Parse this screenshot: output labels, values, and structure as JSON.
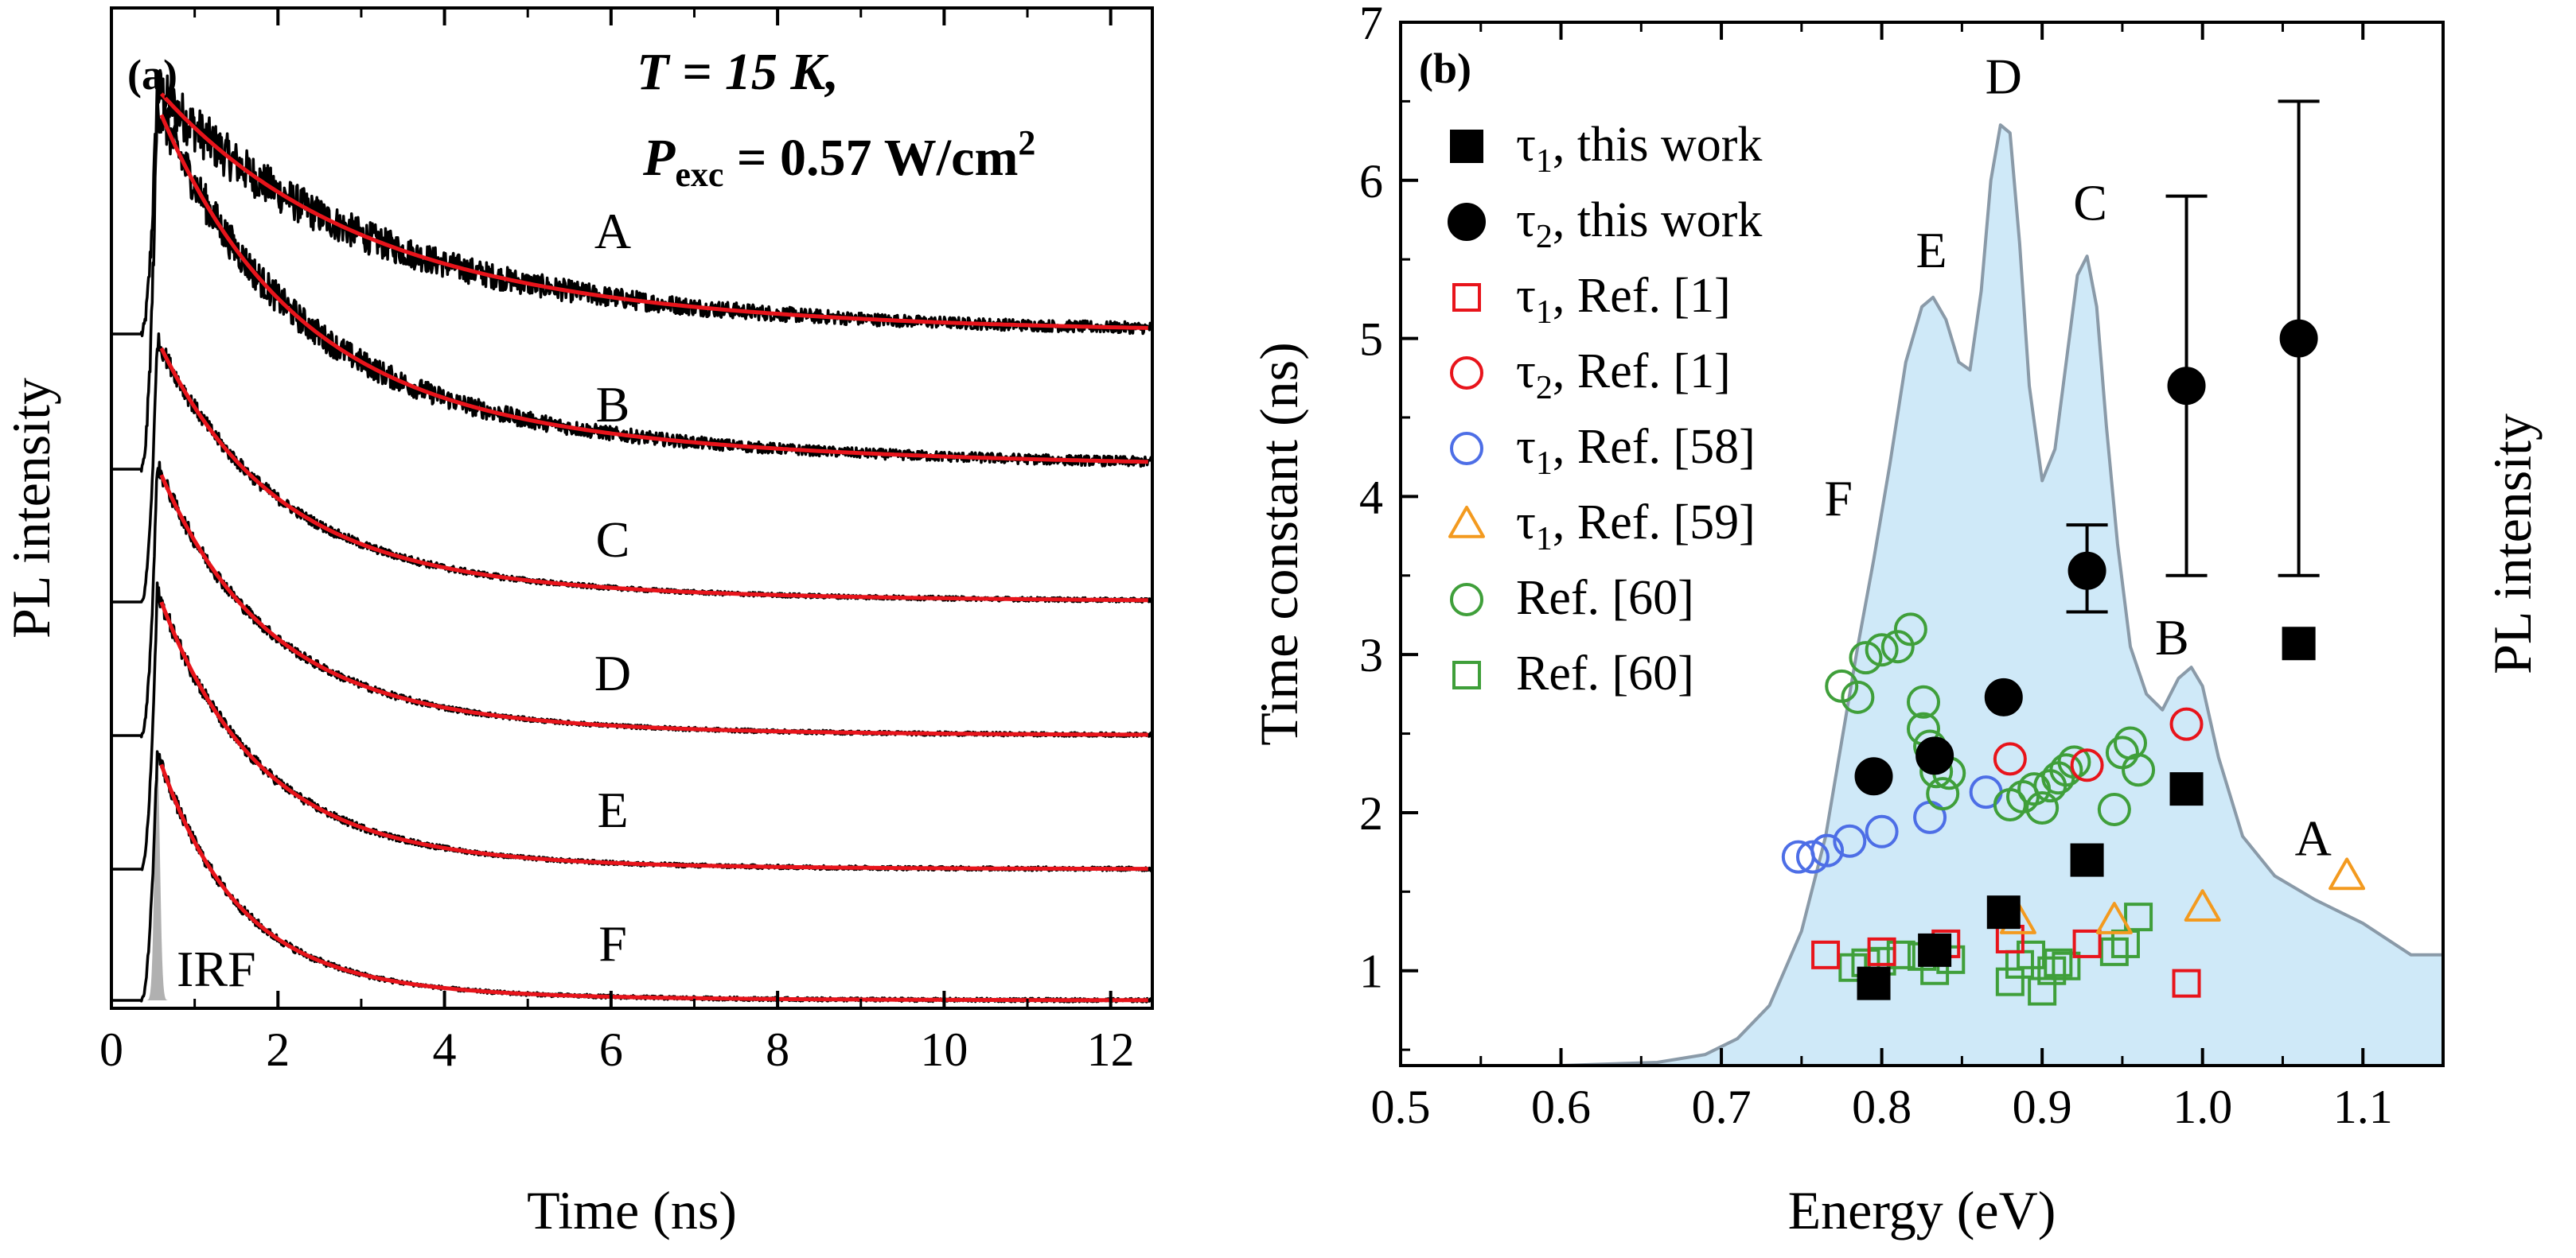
{
  "chart_data": [
    {
      "panel": "a",
      "type": "line",
      "panel_label": "(a)",
      "condition_T": "T = 15 K,",
      "condition_P_symbol": "P",
      "condition_P_sub": "exc",
      "condition_P_value": " = 0.57 W/cm",
      "condition_P_sup": "2",
      "xlabel": "Time (ns)",
      "ylabel": "PL intensity",
      "xlim": [
        0,
        12.5
      ],
      "xticks": [
        0,
        2,
        4,
        6,
        8,
        10,
        12
      ],
      "xtick_labels": [
        "0",
        "2",
        "4",
        "6",
        "8",
        "10",
        "12"
      ],
      "irf_label": "IRF",
      "series": [
        {
          "name": "A",
          "offset": 5.0,
          "amp1": 0.62,
          "tau1": 2.1,
          "amp2": 0.38,
          "tau2": 4.2,
          "noise": 0.06
        },
        {
          "name": "B",
          "offset": 4.0,
          "amp1": 0.75,
          "tau1": 1.5,
          "amp2": 0.25,
          "tau2": 4.7,
          "noise": 0.035
        },
        {
          "name": "C",
          "offset": 3.0,
          "amp1": 0.8,
          "tau1": 1.3,
          "amp2": 0.2,
          "tau2": 3.5,
          "noise": 0.02
        },
        {
          "name": "D",
          "offset": 2.0,
          "amp1": 0.8,
          "tau1": 1.2,
          "amp2": 0.2,
          "tau2": 2.8,
          "noise": 0.018
        },
        {
          "name": "E",
          "offset": 1.0,
          "amp1": 0.82,
          "tau1": 1.1,
          "amp2": 0.18,
          "tau2": 2.3,
          "noise": 0.018
        },
        {
          "name": "F",
          "offset": 0.0,
          "amp1": 0.85,
          "tau1": 0.9,
          "amp2": 0.15,
          "tau2": 2.2,
          "noise": 0.018
        }
      ],
      "line_colors": {
        "data": "#000000",
        "fit": "#e8141b",
        "irf": "#b0b0b0"
      }
    },
    {
      "panel": "b",
      "type": "scatter",
      "panel_label": "(b)",
      "xlabel": "Energy (eV)",
      "ylabel": "Time constant (ns)",
      "ylabel_right": "PL intensity",
      "xlim": [
        0.5,
        1.15
      ],
      "ylim": [
        0.4,
        7.0
      ],
      "xticks": [
        0.5,
        0.6,
        0.7,
        0.8,
        0.9,
        1.0,
        1.1
      ],
      "xtick_labels": [
        "0.5",
        "0.6",
        "0.7",
        "0.8",
        "0.9",
        "1.0",
        "1.1"
      ],
      "yticks": [
        1,
        2,
        3,
        4,
        5,
        6,
        7
      ],
      "ytick_labels": [
        "1",
        "2",
        "3",
        "4",
        "5",
        "6",
        "7"
      ],
      "pl_spectrum": {
        "fill": "#cfe9f8",
        "stroke": "#8a9aa8",
        "energy": [
          0.6,
          0.66,
          0.69,
          0.71,
          0.73,
          0.75,
          0.765,
          0.775,
          0.785,
          0.795,
          0.805,
          0.815,
          0.825,
          0.832,
          0.84,
          0.848,
          0.855,
          0.862,
          0.868,
          0.874,
          0.88,
          0.886,
          0.892,
          0.9,
          0.908,
          0.915,
          0.922,
          0.928,
          0.934,
          0.94,
          0.947,
          0.955,
          0.965,
          0.975,
          0.985,
          0.993,
          1.0,
          1.01,
          1.025,
          1.045,
          1.07,
          1.1,
          1.13,
          1.15
        ],
        "level": [
          0.4,
          0.42,
          0.47,
          0.57,
          0.78,
          1.25,
          1.85,
          2.45,
          3.05,
          3.6,
          4.2,
          4.85,
          5.2,
          5.26,
          5.12,
          4.85,
          4.8,
          5.3,
          6.0,
          6.35,
          6.3,
          5.6,
          4.7,
          4.1,
          4.3,
          4.85,
          5.4,
          5.52,
          5.2,
          4.45,
          3.7,
          3.05,
          2.75,
          2.65,
          2.85,
          2.92,
          2.8,
          2.35,
          1.85,
          1.6,
          1.45,
          1.3,
          1.1,
          1.1
        ]
      },
      "peak_labels": [
        {
          "text": "D",
          "x": 0.876,
          "y": 6.55
        },
        {
          "text": "C",
          "x": 0.93,
          "y": 5.75
        },
        {
          "text": "E",
          "x": 0.831,
          "y": 5.45
        },
        {
          "text": "F",
          "x": 0.773,
          "y": 3.88
        },
        {
          "text": "B",
          "x": 0.981,
          "y": 3.0
        },
        {
          "text": "A",
          "x": 1.069,
          "y": 1.73
        }
      ],
      "legend": [
        {
          "symbol": "square-filled",
          "color": "#000000",
          "label_symbol": "τ",
          "label_sub": "1",
          "label_rest": ", this work"
        },
        {
          "symbol": "circle-filled",
          "color": "#000000",
          "label_symbol": "τ",
          "label_sub": "2",
          "label_rest": ", this work"
        },
        {
          "symbol": "square-open",
          "color": "#e8141b",
          "label_symbol": "τ",
          "label_sub": "1",
          "label_rest": ", Ref. [1]"
        },
        {
          "symbol": "circle-open",
          "color": "#e8141b",
          "label_symbol": "τ",
          "label_sub": "2",
          "label_rest": ", Ref. [1]"
        },
        {
          "symbol": "circle-open",
          "color": "#4d6ee6",
          "label_symbol": "τ",
          "label_sub": "1",
          "label_rest": ", Ref. [58]"
        },
        {
          "symbol": "triangle-open",
          "color": "#f39a1f",
          "label_symbol": "τ",
          "label_sub": "1",
          "label_rest": ", Ref. [59]"
        },
        {
          "symbol": "circle-open",
          "color": "#3f9f3a",
          "label_symbol": "",
          "label_sub": "",
          "label_rest": "Ref. [60]"
        },
        {
          "symbol": "square-open",
          "color": "#3f9f3a",
          "label_symbol": "",
          "label_sub": "",
          "label_rest": "Ref. [60]"
        }
      ],
      "series": [
        {
          "name": "tau1 this work",
          "symbol": "square-filled",
          "color": "#000000",
          "x": [
            0.795,
            0.833,
            0.876,
            0.928,
            0.99,
            1.06
          ],
          "y": [
            0.92,
            1.13,
            1.37,
            1.7,
            2.15,
            3.07
          ]
        },
        {
          "name": "tau2 this work",
          "symbol": "circle-filled",
          "color": "#000000",
          "x": [
            0.795,
            0.833,
            0.876,
            0.928,
            0.99,
            1.06
          ],
          "y": [
            2.23,
            2.36,
            2.73,
            3.53,
            4.7,
            5.0
          ],
          "err_low": [
            2.23,
            2.36,
            2.73,
            3.27,
            3.5,
            3.5
          ],
          "err_high": [
            2.23,
            2.36,
            2.73,
            3.82,
            5.9,
            6.5
          ]
        },
        {
          "name": "tau1 Ref. [1]",
          "symbol": "square-open",
          "color": "#e8141b",
          "x": [
            0.765,
            0.8,
            0.84,
            0.88,
            0.928,
            0.99
          ],
          "y": [
            1.1,
            1.12,
            1.17,
            1.2,
            1.17,
            0.92
          ]
        },
        {
          "name": "tau2 Ref. [1]",
          "symbol": "circle-open",
          "color": "#e8141b",
          "x": [
            0.88,
            0.928,
            0.99
          ],
          "y": [
            2.34,
            2.3,
            2.56
          ]
        },
        {
          "name": "tau1 Ref. [58]",
          "symbol": "circle-open",
          "color": "#4d6ee6",
          "x": [
            0.748,
            0.757,
            0.766,
            0.78,
            0.8,
            0.83,
            0.865
          ],
          "y": [
            1.72,
            1.72,
            1.76,
            1.82,
            1.88,
            1.97,
            2.13
          ]
        },
        {
          "name": "tau1 Ref. [59]",
          "symbol": "triangle-open",
          "color": "#f39a1f",
          "x": [
            0.885,
            0.945,
            1.0,
            1.09
          ],
          "y": [
            1.32,
            1.32,
            1.4,
            1.6
          ]
        },
        {
          "name": "Ref. [60] circles",
          "symbol": "circle-open",
          "color": "#3f9f3a",
          "x": [
            0.775,
            0.785,
            0.79,
            0.8,
            0.81,
            0.818,
            0.826,
            0.826,
            0.83,
            0.834,
            0.838,
            0.842,
            0.88,
            0.888,
            0.895,
            0.9,
            0.905,
            0.91,
            0.915,
            0.92,
            0.945,
            0.95,
            0.955,
            0.96
          ],
          "y": [
            2.8,
            2.73,
            2.98,
            3.03,
            3.05,
            3.16,
            2.7,
            2.53,
            2.42,
            2.26,
            2.12,
            2.25,
            2.05,
            2.1,
            2.15,
            2.03,
            2.17,
            2.22,
            2.27,
            2.32,
            2.02,
            2.38,
            2.44,
            2.27
          ]
        },
        {
          "name": "Ref. [60] squares",
          "symbol": "square-open",
          "color": "#3f9f3a",
          "x": [
            0.782,
            0.79,
            0.8,
            0.812,
            0.825,
            0.833,
            0.843,
            0.88,
            0.886,
            0.893,
            0.9,
            0.906,
            0.91,
            0.915,
            0.945,
            0.952,
            0.96
          ],
          "y": [
            1.02,
            1.05,
            1.06,
            1.1,
            1.09,
            1.0,
            1.07,
            0.93,
            1.04,
            1.1,
            0.87,
            1.0,
            1.05,
            1.03,
            1.12,
            1.17,
            1.34
          ]
        }
      ]
    }
  ]
}
